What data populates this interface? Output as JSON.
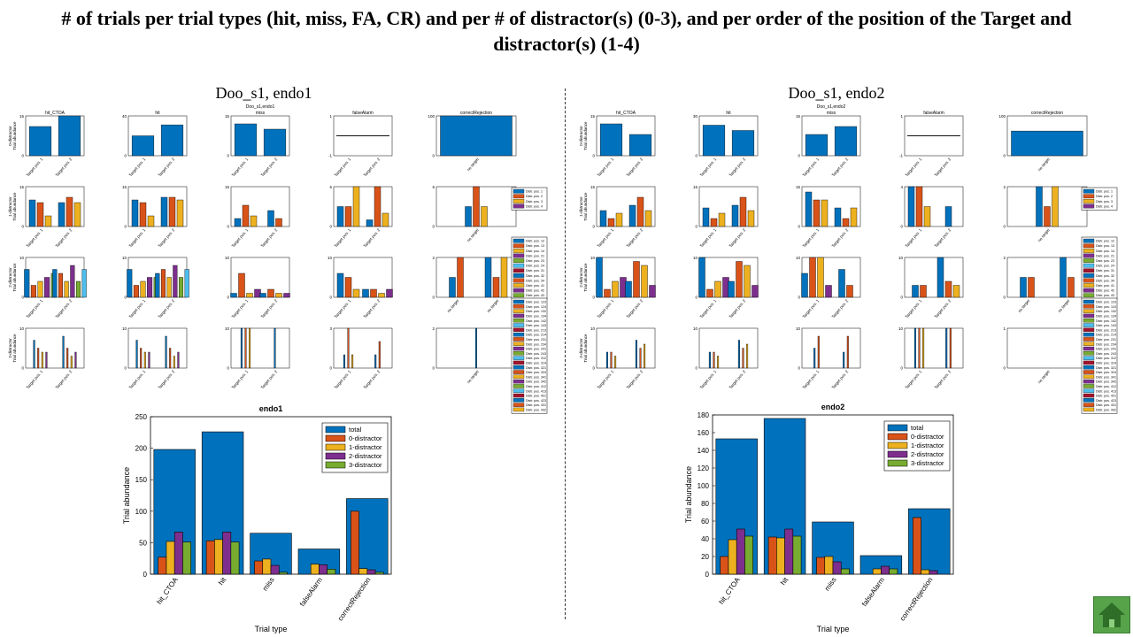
{
  "slide": {
    "title": "# of trials per trial types (hit, miss, FA, CR) and per # of distractor(s) (0-3), and per order of the position of the Target and distractor(s) (1-4)"
  },
  "panels": [
    {
      "title": "Doo_s1, endo1",
      "mini_title": "Doo_s1,endo1"
    },
    {
      "title": "Doo_s1, endo2",
      "mini_title": "Doo_s1,endo2"
    }
  ],
  "colors": {
    "total": "#0072BD",
    "d0": "#D95319",
    "d1": "#EDB120",
    "d2": "#7E2F8E",
    "d3": "#77AC30",
    "d4": "#4DBEEE",
    "d5": "#A2142F"
  },
  "grid_labels": {
    "col_titles": [
      "hit_CTOA",
      "hit",
      "miss",
      "falseAlarm",
      "correctRejection"
    ],
    "row_labels": [
      "0-distractor\nTrial abundance",
      "1-distractor\nTrial abundance",
      "2-distractor\nTrial abundance",
      "3-distractor\nTrial abundance"
    ],
    "target_ticks": [
      "Target pos. 1",
      "Target pos. 2"
    ],
    "cr_tick": "no target"
  },
  "chart_data": [
    {
      "type": "bar",
      "title": "endo1",
      "xlabel": "Trial type",
      "ylabel": "Trial abundance",
      "categories": [
        "hit_CTOA",
        "hit",
        "miss",
        "falseAlarm",
        "correctRejection"
      ],
      "ylim": [
        0,
        250
      ],
      "yticks": [
        0,
        50,
        100,
        150,
        200,
        250
      ],
      "legend": "top-right",
      "series": [
        {
          "name": "total",
          "values": [
            198,
            226,
            65,
            40,
            120
          ]
        },
        {
          "name": "0-distractor",
          "values": [
            27,
            53,
            21,
            0,
            100
          ]
        },
        {
          "name": "1-distractor",
          "values": [
            52,
            55,
            24,
            16,
            9
          ]
        },
        {
          "name": "2-distractor",
          "values": [
            67,
            67,
            14,
            15,
            7
          ]
        },
        {
          "name": "3-distractor",
          "values": [
            51,
            51,
            3,
            8,
            3
          ]
        }
      ]
    },
    {
      "type": "bar",
      "title": "endo2",
      "xlabel": "Trial type",
      "ylabel": "Trial abundance",
      "categories": [
        "hit_CTOA",
        "hit",
        "miss",
        "falseAlarm",
        "correctRejection"
      ],
      "ylim": [
        0,
        180
      ],
      "yticks": [
        0,
        20,
        40,
        60,
        80,
        100,
        120,
        140,
        160,
        180
      ],
      "legend": "top-right",
      "series": [
        {
          "name": "total",
          "values": [
            153,
            176,
            59,
            21,
            74
          ]
        },
        {
          "name": "0-distractor",
          "values": [
            20,
            42,
            19,
            0,
            64
          ]
        },
        {
          "name": "1-distractor",
          "values": [
            39,
            41,
            20,
            6,
            5
          ]
        },
        {
          "name": "2-distractor",
          "values": [
            51,
            51,
            14,
            9,
            4
          ]
        },
        {
          "name": "3-distractor",
          "values": [
            43,
            43,
            6,
            6,
            0
          ]
        }
      ]
    },
    {
      "type": "bar",
      "title": "endo1 per position grid",
      "rows": [
        {
          "ymax": [
            15,
            40,
            15,
            1,
            100
          ],
          "cells": [
            [
              [
                11
              ],
              [
                15
              ]
            ],
            [
              [
                20
              ],
              [
                31
              ]
            ],
            [
              [
                12
              ],
              [
                10
              ]
            ],
            [
              [
                0
              ],
              [
                0
              ]
            ],
            [
              [
                100
              ]
            ]
          ]
        },
        {
          "ymax": [
            15,
            15,
            15,
            6,
            6
          ],
          "cells": [
            [
              [
                10,
                9,
                4
              ],
              [
                9,
                11,
                9
              ]
            ],
            [
              [
                10,
                9,
                4
              ],
              [
                11,
                11,
                10
              ]
            ],
            [
              [
                3,
                8,
                4
              ],
              [
                6,
                3
              ]
            ],
            [
              [
                3,
                3,
                6
              ],
              [
                1,
                6,
                2
              ]
            ],
            [
              [
                3,
                6,
                3
              ]
            ]
          ]
        },
        {
          "ymax": [
            10,
            10,
            10,
            10,
            2
          ],
          "cells": [
            [
              [
                7,
                3,
                4,
                5,
                6
              ],
              [
                7,
                6,
                4,
                8,
                4,
                7
              ]
            ],
            [
              [
                7,
                3,
                4,
                5,
                5
              ],
              [
                6,
                7,
                5,
                8,
                5,
                7
              ]
            ],
            [
              [
                1,
                6,
                1,
                2
              ],
              [
                1,
                2,
                1,
                1
              ]
            ],
            [
              [
                6,
                5,
                2
              ],
              [
                2,
                2,
                1,
                2
              ]
            ],
            [
              [
                1,
                2
              ],
              [
                2,
                1,
                2
              ]
            ]
          ]
        },
        {
          "ymax": [
            10,
            10,
            10,
            3,
            2
          ],
          "cells": [
            [
              [
                7,
                5,
                4,
                4
              ],
              [
                8,
                5,
                3,
                4
              ]
            ],
            [
              [
                7,
                5,
                4,
                4
              ],
              [
                8,
                5,
                3,
                4
              ]
            ],
            [
              [
                10,
                10,
                10
              ],
              [
                10
              ]
            ],
            [
              [
                1,
                3,
                1
              ],
              [
                1,
                2
              ]
            ],
            [
              [
                2
              ]
            ]
          ]
        }
      ]
    },
    {
      "type": "bar",
      "title": "endo2 per position grid",
      "rows": [
        {
          "ymax": [
            15,
            30,
            15,
            1,
            100
          ],
          "cells": [
            [
              [
                12
              ],
              [
                8
              ]
            ],
            [
              [
                23
              ],
              [
                19
              ]
            ],
            [
              [
                8
              ],
              [
                11
              ]
            ],
            [
              [
                0
              ],
              [
                0
              ]
            ],
            [
              [
                62
              ]
            ]
          ]
        },
        {
          "ymax": [
            15,
            15,
            15,
            4,
            2
          ],
          "cells": [
            [
              [
                6,
                3,
                5
              ],
              [
                8,
                11,
                6
              ]
            ],
            [
              [
                7,
                3,
                5
              ],
              [
                8,
                11,
                6
              ]
            ],
            [
              [
                13,
                10,
                10
              ],
              [
                7,
                3,
                7
              ]
            ],
            [
              [
                4,
                4,
                2
              ],
              [
                2
              ]
            ],
            [
              [
                2,
                1,
                2
              ]
            ]
          ]
        },
        {
          "ymax": [
            10,
            10,
            10,
            10,
            2
          ],
          "cells": [
            [
              [
                10,
                2,
                4,
                5
              ],
              [
                4,
                9,
                8,
                3
              ]
            ],
            [
              [
                10,
                2,
                4,
                5
              ],
              [
                4,
                9,
                8,
                3
              ]
            ],
            [
              [
                6,
                10,
                10,
                3
              ],
              [
                7,
                3
              ]
            ],
            [
              [
                3,
                3
              ],
              [
                10,
                4,
                3
              ]
            ],
            [
              [
                1,
                1
              ],
              [
                2,
                1
              ]
            ]
          ]
        },
        {
          "ymax": [
            10,
            10,
            10,
            10,
            1
          ],
          "cells": [
            [
              [
                4,
                4,
                3
              ],
              [
                7,
                5,
                6
              ]
            ],
            [
              [
                4,
                4,
                3
              ],
              [
                7,
                5,
                6
              ]
            ],
            [
              [
                5,
                8
              ],
              [
                4,
                8
              ]
            ],
            [
              [
                10,
                10,
                10
              ],
              [
                10,
                10
              ]
            ],
            [
              [
                0
              ]
            ]
          ]
        }
      ]
    }
  ],
  "legends_small": [
    [
      "Distr. pos. 1",
      "Distr. pos. 2",
      "Distr. pos. 3",
      "Distr. pos. 4"
    ],
    [
      "Distr. pos. 12",
      "Distr. pos. 13",
      "Distr. pos. 14",
      "Distr. pos. 21",
      "Distr. pos. 23",
      "Distr. pos. 24",
      "Distr. pos. 31",
      "Distr. pos. 32",
      "Distr. pos. 34",
      "Distr. pos. 41",
      "Distr. pos. 42",
      "Distr. pos. 43"
    ],
    [
      "Distr. pos. 123",
      "Distr. pos. 124",
      "Distr. pos. 132",
      "Distr. pos. 134",
      "Distr. pos. 142",
      "Distr. pos. 143",
      "Distr. pos. 213",
      "Distr. pos. 214",
      "Distr. pos. 231",
      "Distr. pos. 234",
      "Distr. pos. 241",
      "Distr. pos. 243",
      "Distr. pos. 312",
      "Distr. pos. 314",
      "Distr. pos. 321",
      "Distr. pos. 324",
      "Distr. pos. 341",
      "Distr. pos. 342",
      "Distr. pos. 412",
      "Distr. pos. 413",
      "Distr. pos. 421",
      "Distr. pos. 423",
      "Distr. pos. 431",
      "Distr. pos. 432"
    ]
  ],
  "nav": {
    "home_icon": "home-icon"
  }
}
